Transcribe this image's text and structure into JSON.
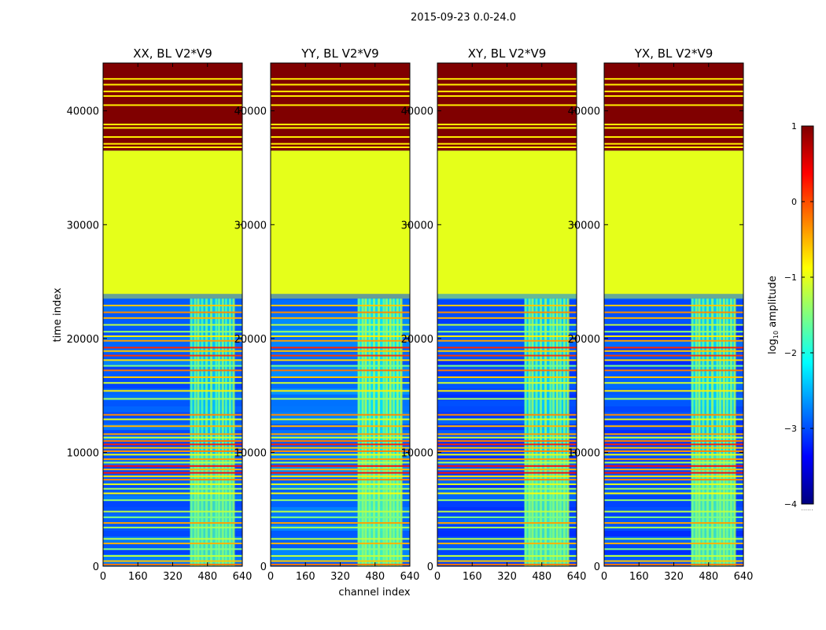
{
  "chart_data": {
    "type": "heatmap",
    "suptitle": "2015-09-23 0.0-24.0",
    "xlabel": "channel index",
    "ylabel": "time index",
    "xlim": [
      0,
      640
    ],
    "ylim": [
      0,
      44200
    ],
    "xticks": [
      0,
      160,
      320,
      480,
      640
    ],
    "yticks": [
      0,
      10000,
      20000,
      30000,
      40000
    ],
    "colormap": "jet",
    "colorbar": {
      "label": "log",
      "label_sub": "10",
      "label_suffix": " amplitude",
      "min": -4,
      "max": 1,
      "ticks": [
        1,
        0,
        -1,
        -2,
        -3,
        -4
      ],
      "tick_labels": [
        "1",
        "0",
        "−1",
        "−2",
        "−3",
        "−4"
      ],
      "footnote": "......"
    },
    "rfi_channel_band": [
      400,
      600
    ],
    "panels": [
      {
        "title": "XX, BL V2*V9",
        "base_log_amp": -2.9,
        "band_log_amp": -1.7
      },
      {
        "title": "YY, BL V2*V9",
        "base_log_amp": -2.8,
        "band_log_amp": -1.5
      },
      {
        "title": "XY, BL V2*V9",
        "base_log_amp": -3.0,
        "band_log_amp": -1.6
      },
      {
        "title": "YX, BL V2*V9",
        "base_log_amp": -3.0,
        "band_log_amp": -1.6
      }
    ],
    "time_regions": [
      {
        "name": "masked-high",
        "from": 36500,
        "to": 44200,
        "log_amp": 1.0
      },
      {
        "name": "flagged-constant",
        "from": 23500,
        "to": 36500,
        "log_amp": -1.0
      },
      {
        "name": "observed",
        "from": 0,
        "to": 23500,
        "log_amp": null
      }
    ],
    "horizontal_lines": [
      {
        "t": 42800,
        "log_amp": -0.8
      },
      {
        "t": 42300,
        "log_amp": -0.8
      },
      {
        "t": 41700,
        "log_amp": -0.8
      },
      {
        "t": 41300,
        "log_amp": -0.8
      },
      {
        "t": 40500,
        "log_amp": -0.8
      },
      {
        "t": 38800,
        "log_amp": -0.9
      },
      {
        "t": 38500,
        "log_amp": -0.9
      },
      {
        "t": 37700,
        "log_amp": -0.8
      },
      {
        "t": 37100,
        "log_amp": -0.8
      },
      {
        "t": 36800,
        "log_amp": -0.8
      },
      {
        "t": 22900,
        "log_amp": -0.6
      },
      {
        "t": 22300,
        "log_amp": -0.3
      },
      {
        "t": 21800,
        "log_amp": -0.5
      },
      {
        "t": 21200,
        "log_amp": -1.2
      },
      {
        "t": 20600,
        "log_amp": -1.4
      },
      {
        "t": 20200,
        "log_amp": -0.8
      },
      {
        "t": 19800,
        "log_amp": -0.4
      },
      {
        "t": 19200,
        "log_amp": 0.2
      },
      {
        "t": 18900,
        "log_amp": -0.6
      },
      {
        "t": 18500,
        "log_amp": 0.1
      },
      {
        "t": 18100,
        "log_amp": -0.7
      },
      {
        "t": 17600,
        "log_amp": -1.5
      },
      {
        "t": 17200,
        "log_amp": -0.2
      },
      {
        "t": 16600,
        "log_amp": -0.6
      },
      {
        "t": 16100,
        "log_amp": -1.1
      },
      {
        "t": 15400,
        "log_amp": -0.8
      },
      {
        "t": 14700,
        "log_amp": -1.3
      },
      {
        "t": 13300,
        "log_amp": -0.3
      },
      {
        "t": 12900,
        "log_amp": -1.0
      },
      {
        "t": 12300,
        "log_amp": -0.5
      },
      {
        "t": 11600,
        "log_amp": -0.4
      },
      {
        "t": 11300,
        "log_amp": -1.1
      },
      {
        "t": 11000,
        "log_amp": -0.2
      },
      {
        "t": 10700,
        "log_amp": 0.2
      },
      {
        "t": 10400,
        "log_amp": -0.6
      },
      {
        "t": 10100,
        "log_amp": -0.3
      },
      {
        "t": 9800,
        "log_amp": -1.0
      },
      {
        "t": 9400,
        "log_amp": -0.4
      },
      {
        "t": 9100,
        "log_amp": -1.2
      },
      {
        "t": 8800,
        "log_amp": 0.3
      },
      {
        "t": 8500,
        "log_amp": -0.5
      },
      {
        "t": 8200,
        "log_amp": 0.3
      },
      {
        "t": 7900,
        "log_amp": -0.8
      },
      {
        "t": 7600,
        "log_amp": -0.3
      },
      {
        "t": 7200,
        "log_amp": -1.0
      },
      {
        "t": 6800,
        "log_amp": -1.3
      },
      {
        "t": 6400,
        "log_amp": -0.9
      },
      {
        "t": 5800,
        "log_amp": -1.4
      },
      {
        "t": 4800,
        "log_amp": -1.2
      },
      {
        "t": 4300,
        "log_amp": -1.5
      },
      {
        "t": 3800,
        "log_amp": -0.4
      },
      {
        "t": 3400,
        "log_amp": -1.3
      },
      {
        "t": 2400,
        "log_amp": -1.2
      },
      {
        "t": 2000,
        "log_amp": -0.5
      },
      {
        "t": 1500,
        "log_amp": -1.5
      },
      {
        "t": 900,
        "log_amp": -1.2
      },
      {
        "t": 450,
        "log_amp": -0.6
      },
      {
        "t": 150,
        "log_amp": -0.2
      }
    ],
    "vertical_streaks": [
      400,
      418,
      432,
      450,
      470,
      492,
      515,
      528,
      545,
      560,
      578,
      595
    ]
  }
}
